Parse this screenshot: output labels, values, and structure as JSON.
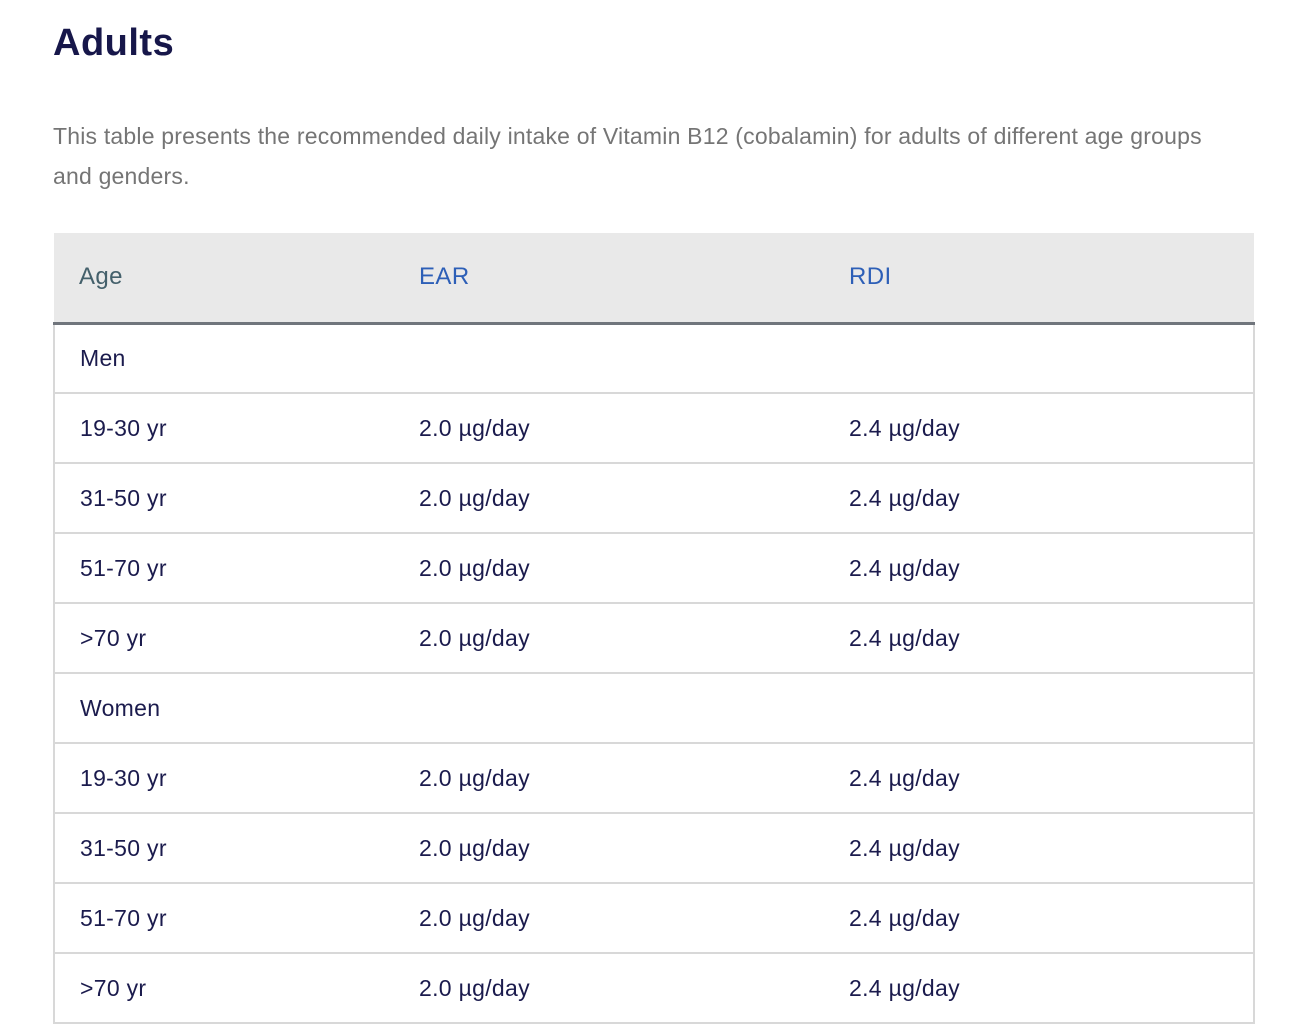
{
  "page": {
    "title": "Adults",
    "description": "This table presents the recommended daily intake of Vitamin B12 (cobalamin) for adults of different age groups and genders."
  },
  "table": {
    "columns": [
      {
        "key": "age",
        "label": "Age"
      },
      {
        "key": "ear",
        "label": "EAR"
      },
      {
        "key": "rdi",
        "label": "RDI"
      }
    ],
    "rows": [
      {
        "type": "group",
        "age": "Men",
        "ear": "",
        "rdi": ""
      },
      {
        "type": "data",
        "age": "19-30 yr",
        "ear": "2.0 µg/day",
        "rdi": "2.4 µg/day"
      },
      {
        "type": "data",
        "age": "31-50 yr",
        "ear": "2.0 µg/day",
        "rdi": "2.4 µg/day"
      },
      {
        "type": "data",
        "age": "51-70 yr",
        "ear": "2.0 µg/day",
        "rdi": "2.4 µg/day"
      },
      {
        "type": "data",
        "age": ">70 yr",
        "ear": "2.0 µg/day",
        "rdi": "2.4 µg/day"
      },
      {
        "type": "group",
        "age": "Women",
        "ear": "",
        "rdi": ""
      },
      {
        "type": "data",
        "age": "19-30 yr",
        "ear": "2.0 µg/day",
        "rdi": "2.4 µg/day"
      },
      {
        "type": "data",
        "age": "31-50 yr",
        "ear": "2.0 µg/day",
        "rdi": "2.4 µg/day"
      },
      {
        "type": "data",
        "age": "51-70 yr",
        "ear": "2.0 µg/day",
        "rdi": "2.4 µg/day"
      },
      {
        "type": "data",
        "age": ">70 yr",
        "ear": "2.0 µg/day",
        "rdi": "2.4 µg/day"
      }
    ]
  },
  "colors": {
    "title_text": "#17174a",
    "body_text": "#1b1b4d",
    "description_text": "#757575",
    "header_background": "#e9e9e9",
    "age_header_text": "#44606b",
    "link_header_text": "#2d5fb7",
    "header_bottom_border": "#70757c",
    "row_border": "#d8d8d8"
  }
}
